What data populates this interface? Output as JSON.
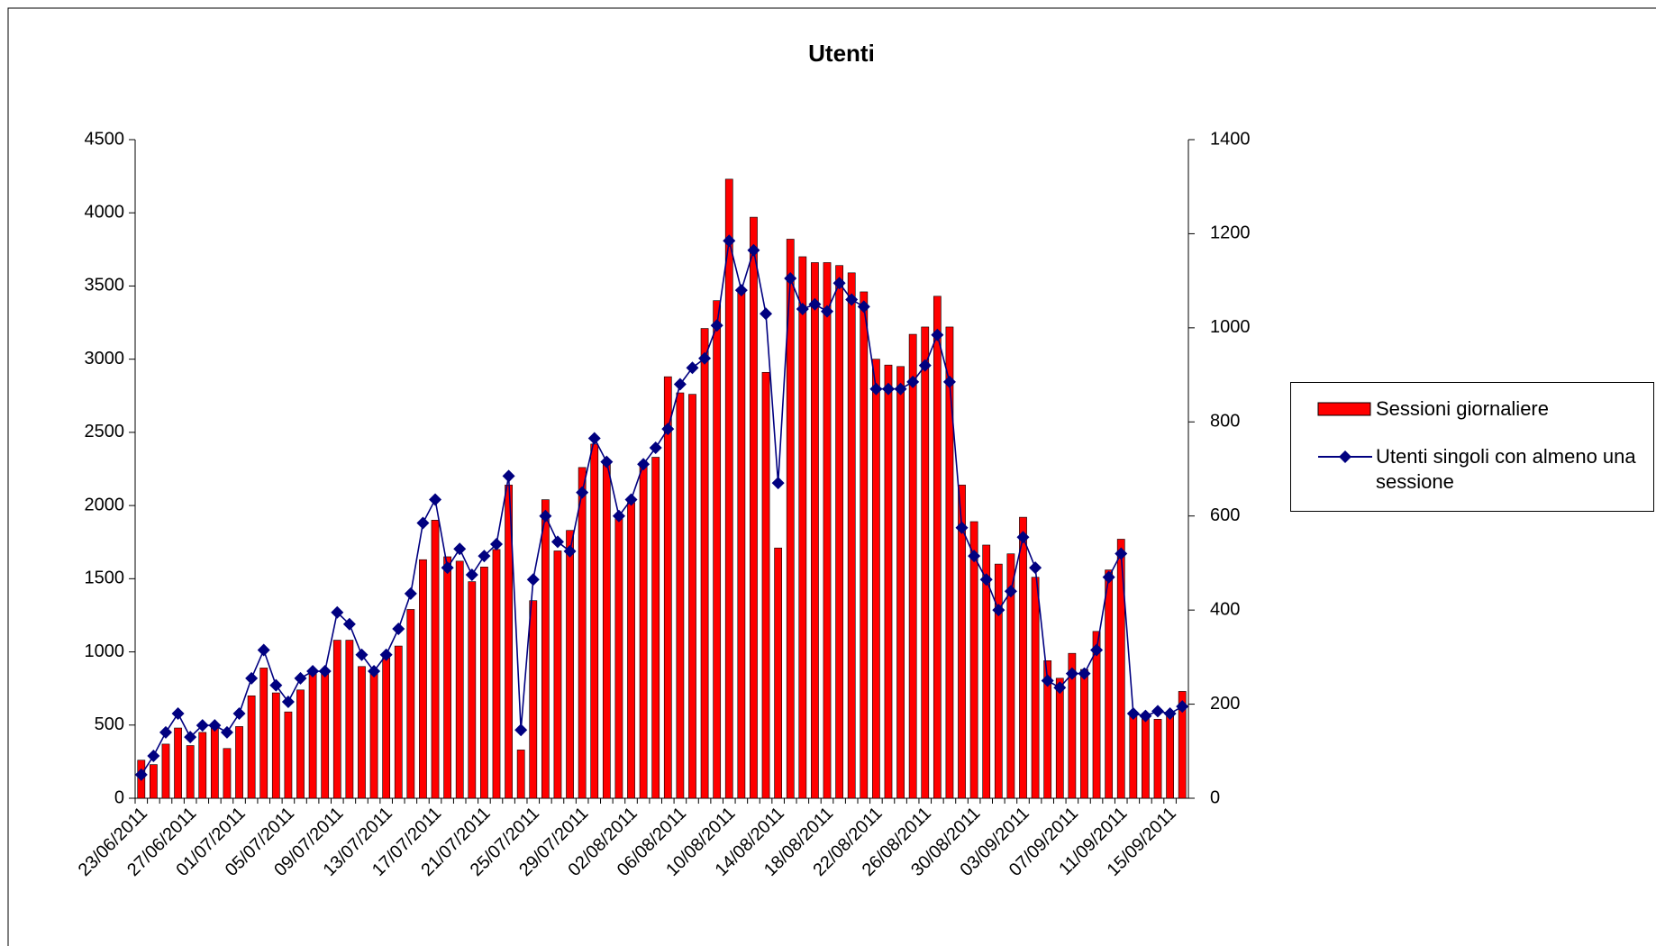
{
  "chart_data": {
    "type": "bar_line",
    "title": "Utenti",
    "categories": [
      "23/06/2011",
      null,
      null,
      null,
      "27/06/2011",
      null,
      null,
      null,
      "01/07/2011",
      null,
      null,
      null,
      "05/07/2011",
      null,
      null,
      null,
      "09/07/2011",
      null,
      null,
      null,
      "13/07/2011",
      null,
      null,
      null,
      "17/07/2011",
      null,
      null,
      null,
      "21/07/2011",
      null,
      null,
      null,
      "25/07/2011",
      null,
      null,
      null,
      "29/07/2011",
      null,
      null,
      null,
      "02/08/2011",
      null,
      null,
      null,
      "06/08/2011",
      null,
      null,
      null,
      "10/08/2011",
      null,
      null,
      null,
      "14/08/2011",
      null,
      null,
      null,
      "18/08/2011",
      null,
      null,
      null,
      "22/08/2011",
      null,
      null,
      null,
      "26/08/2011",
      null,
      null,
      null,
      "30/08/2011",
      null,
      null,
      null,
      "03/09/2011",
      null,
      null,
      null,
      "07/09/2011",
      null,
      null,
      null,
      "11/09/2011",
      null,
      null,
      null,
      "15/09/2011",
      null
    ],
    "series": [
      {
        "name": "Sessioni giornaliere",
        "color": "#ff0000",
        "type": "bar",
        "values": [
          260,
          230,
          370,
          480,
          360,
          450,
          480,
          340,
          490,
          700,
          890,
          720,
          590,
          740,
          850,
          870,
          1080,
          1080,
          900,
          870,
          960,
          1040,
          1290,
          1630,
          1900,
          1650,
          1620,
          1480,
          1580,
          1700,
          2140,
          330,
          1350,
          2040,
          1690,
          1830,
          2260,
          2420,
          2290,
          1910,
          2020,
          2300,
          2330,
          2880,
          2770,
          2760,
          3210,
          3400,
          4230,
          3480,
          3970,
          2910,
          1710,
          3820,
          3700,
          3660,
          3660,
          3640,
          3590,
          3460,
          3000,
          2960,
          2950,
          3170,
          3220,
          3430,
          3220,
          2140,
          1890,
          1730,
          1600,
          1670,
          1920,
          1510,
          940,
          820,
          990,
          880,
          1140,
          1560,
          1770,
          570,
          580,
          540,
          590,
          730
        ]
      },
      {
        "name": "Utenti singoli con almeno una sessione",
        "color": "#000080",
        "type": "line",
        "axis": "y2",
        "values": [
          50,
          90,
          140,
          180,
          130,
          155,
          155,
          140,
          180,
          255,
          315,
          240,
          205,
          255,
          270,
          270,
          395,
          370,
          305,
          270,
          305,
          360,
          435,
          585,
          635,
          490,
          530,
          475,
          515,
          540,
          685,
          145,
          465,
          600,
          545,
          525,
          650,
          765,
          715,
          600,
          635,
          710,
          745,
          785,
          880,
          915,
          935,
          1005,
          1185,
          1080,
          1165,
          1030,
          670,
          1105,
          1040,
          1050,
          1035,
          1095,
          1060,
          1045,
          870,
          870,
          870,
          885,
          920,
          985,
          885,
          575,
          515,
          465,
          400,
          440,
          555,
          490,
          250,
          235,
          265,
          265,
          315,
          470,
          520,
          180,
          175,
          185,
          180,
          195
        ]
      }
    ],
    "ylim": [
      0,
      4500
    ],
    "yticks": [
      0,
      500,
      1000,
      1500,
      2000,
      2500,
      3000,
      3500,
      4000,
      4500
    ],
    "y2lim": [
      0,
      1400
    ],
    "y2ticks": [
      0,
      200,
      400,
      600,
      800,
      1000,
      1200,
      1400
    ]
  }
}
